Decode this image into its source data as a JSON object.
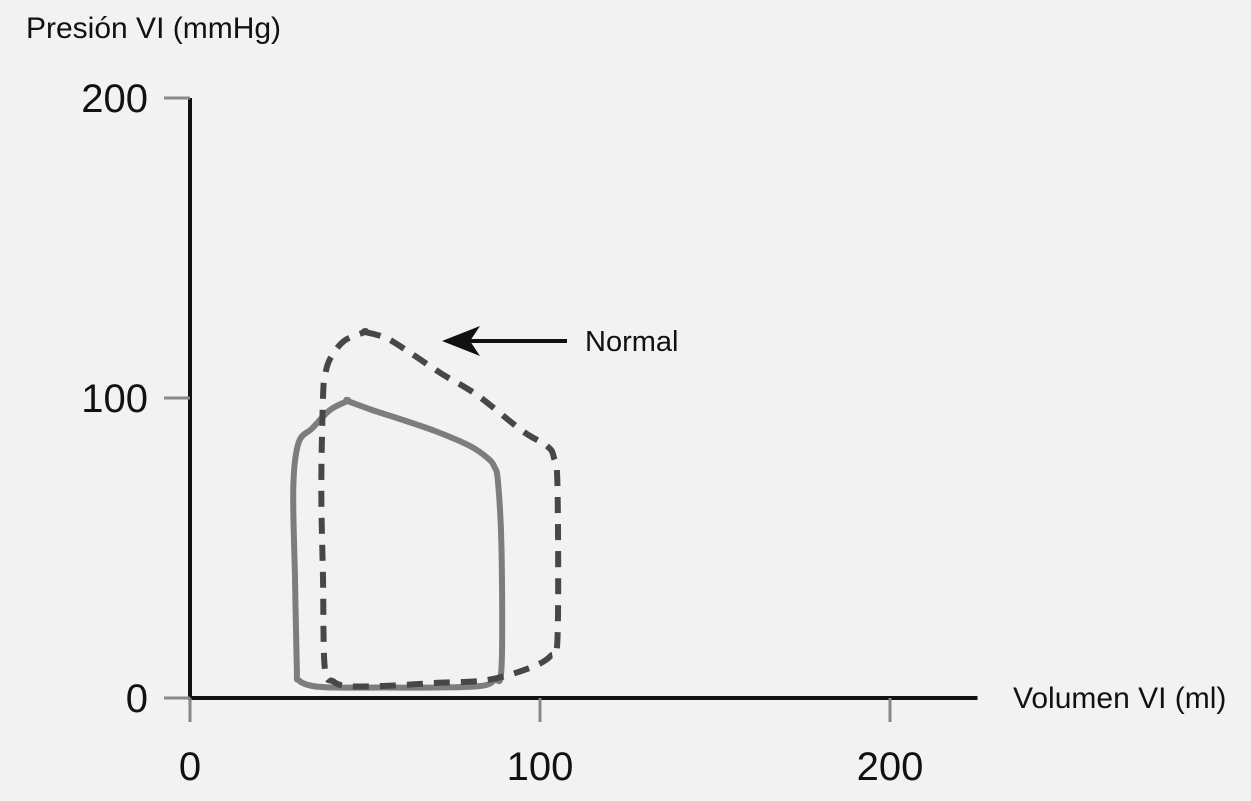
{
  "chart_data": {
    "type": "line",
    "title": "",
    "ylabel": "Presión VI (mmHg)",
    "xlabel": "Volumen VI (ml)",
    "xlim": [
      0,
      225
    ],
    "ylim": [
      0,
      200
    ],
    "xticks": [
      0,
      100,
      200
    ],
    "yticks": [
      0,
      100,
      200
    ],
    "grid": false,
    "series": [
      {
        "style": "solid",
        "color": "#7d7d7d",
        "x": [
          45,
          52,
          60,
          70,
          80,
          85,
          87,
          88,
          89,
          89,
          87,
          83,
          70,
          55,
          42,
          35,
          31,
          30.5,
          30,
          29.5,
          31,
          35,
          40,
          45
        ],
        "y": [
          99,
          96,
          93,
          89,
          84,
          80,
          77,
          72,
          50,
          10,
          6,
          4,
          3.5,
          3.5,
          3.5,
          4,
          6,
          10,
          40,
          70,
          85,
          90,
          96,
          99
        ]
      },
      {
        "name": "Normal",
        "style": "dashed",
        "color": "#474747",
        "x": [
          50,
          56,
          63,
          72,
          82,
          95,
          102,
          104,
          105,
          105,
          103,
          97,
          85,
          70,
          55,
          45,
          41,
          38.5,
          38,
          37.5,
          38,
          38.5,
          40,
          44,
          50
        ],
        "y": [
          122,
          120,
          115,
          108,
          101,
          89,
          84,
          80,
          70,
          20,
          14,
          10,
          6,
          5,
          4,
          4,
          5.5,
          10,
          40,
          70,
          100,
          107,
          113,
          119,
          122
        ]
      }
    ],
    "annotations": [
      {
        "text": "Normal",
        "arrow_to": [
          72,
          113
        ]
      }
    ]
  }
}
